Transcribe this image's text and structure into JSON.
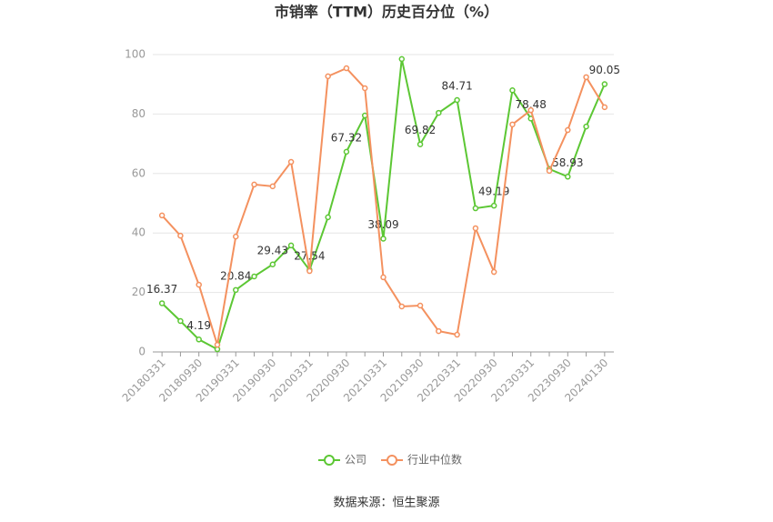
{
  "chart_data": {
    "type": "line",
    "title": "市销率（TTM）历史百分位（%）",
    "categories": [
      "20180331",
      null,
      "20180930",
      null,
      "20190331",
      null,
      "20190930",
      null,
      "20200331",
      null,
      "20200930",
      null,
      "20210331",
      null,
      "20210930",
      null,
      "20220331",
      null,
      "20220930",
      null,
      "20230331",
      null,
      "20230930",
      null,
      "20240130"
    ],
    "series": [
      {
        "name": "公司",
        "color": "#5cc734",
        "data_labels": "alternate",
        "values": [
          16.37,
          10.4,
          4.19,
          0.9,
          20.84,
          25.4,
          29.43,
          35.8,
          27.54,
          45.3,
          67.32,
          79.5,
          38.09,
          98.5,
          69.82,
          80.4,
          84.71,
          48.3,
          49.19,
          88,
          78.48,
          61.5,
          58.93,
          75.8,
          90.05
        ]
      },
      {
        "name": "行业中位数",
        "color": "#f4915f",
        "data_labels": "none",
        "values": [
          45.9,
          39.1,
          22.6,
          2.4,
          38.8,
          56.3,
          55.7,
          63.9,
          27.2,
          92.7,
          95.4,
          88.7,
          25.1,
          15.3,
          15.6,
          7.0,
          5.8,
          41.6,
          26.9,
          76.5,
          81.3,
          60.9,
          74.6,
          92.4,
          82.3
        ]
      }
    ],
    "ylim": [
      0,
      100
    ],
    "yticks": [
      0,
      20,
      40,
      60,
      80,
      100
    ],
    "grid": true,
    "legend": "bottom",
    "source": "数据来源：恒生聚源"
  }
}
